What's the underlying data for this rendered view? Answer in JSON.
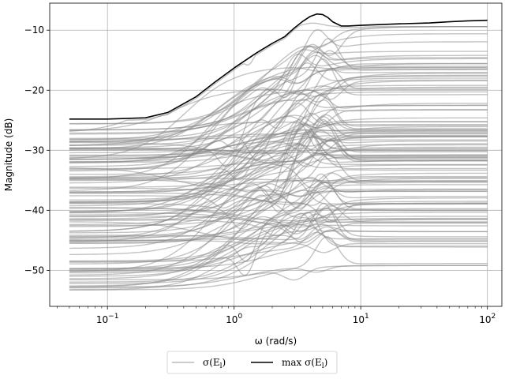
{
  "chart_data": {
    "type": "line",
    "title": "",
    "xlabel": "ω (rad/s)",
    "ylabel": "Magnitude (dB)",
    "xscale": "log",
    "xlim": [
      0.035,
      130
    ],
    "ylim": [
      -56,
      -5.5
    ],
    "grid": true,
    "legend_placement": "bottom-center, below axes",
    "x_ticks": [
      {
        "value": 0.1,
        "base": "10",
        "exp": "−1"
      },
      {
        "value": 1,
        "base": "10",
        "exp": "0"
      },
      {
        "value": 10,
        "base": "10",
        "exp": "1"
      },
      {
        "value": 100,
        "base": "10",
        "exp": "2"
      }
    ],
    "y_ticks": [
      {
        "value": -50,
        "label": "−50"
      },
      {
        "value": -40,
        "label": "−40"
      },
      {
        "value": -30,
        "label": "−30"
      },
      {
        "value": -20,
        "label": "−20"
      },
      {
        "value": -10,
        "label": "−10"
      }
    ],
    "legend": [
      {
        "label": "σ(E",
        "sub": "l",
        "tail": ")",
        "color": "#bbbbbb"
      },
      {
        "label": "max σ(E",
        "sub": "l",
        "tail": ")",
        "color": "#000000"
      }
    ],
    "series": [
      {
        "role": "max",
        "color": "#000000",
        "x": [
          0.05,
          0.1,
          0.2,
          0.3,
          0.5,
          0.7,
          1,
          1.5,
          2,
          2.5,
          3,
          3.5,
          4,
          4.5,
          5,
          5.5,
          6,
          7,
          8,
          10,
          20,
          35,
          50,
          70,
          100
        ],
        "y": [
          -24.8,
          -24.8,
          -24.6,
          -23.7,
          -21.1,
          -18.7,
          -16.3,
          -13.8,
          -12.2,
          -11.1,
          -9.6,
          -8.5,
          -7.7,
          -7.3,
          -7.4,
          -7.9,
          -8.6,
          -9.3,
          -9.3,
          -9.2,
          -8.95,
          -8.8,
          -8.6,
          -8.45,
          -8.35
        ]
      }
    ],
    "band": {
      "color": "#888888",
      "opacity": 0.5,
      "description_count": 120,
      "start_range": [
        -53.5,
        -24.8
      ],
      "end_range": [
        -50.2,
        -9.0
      ]
    }
  }
}
